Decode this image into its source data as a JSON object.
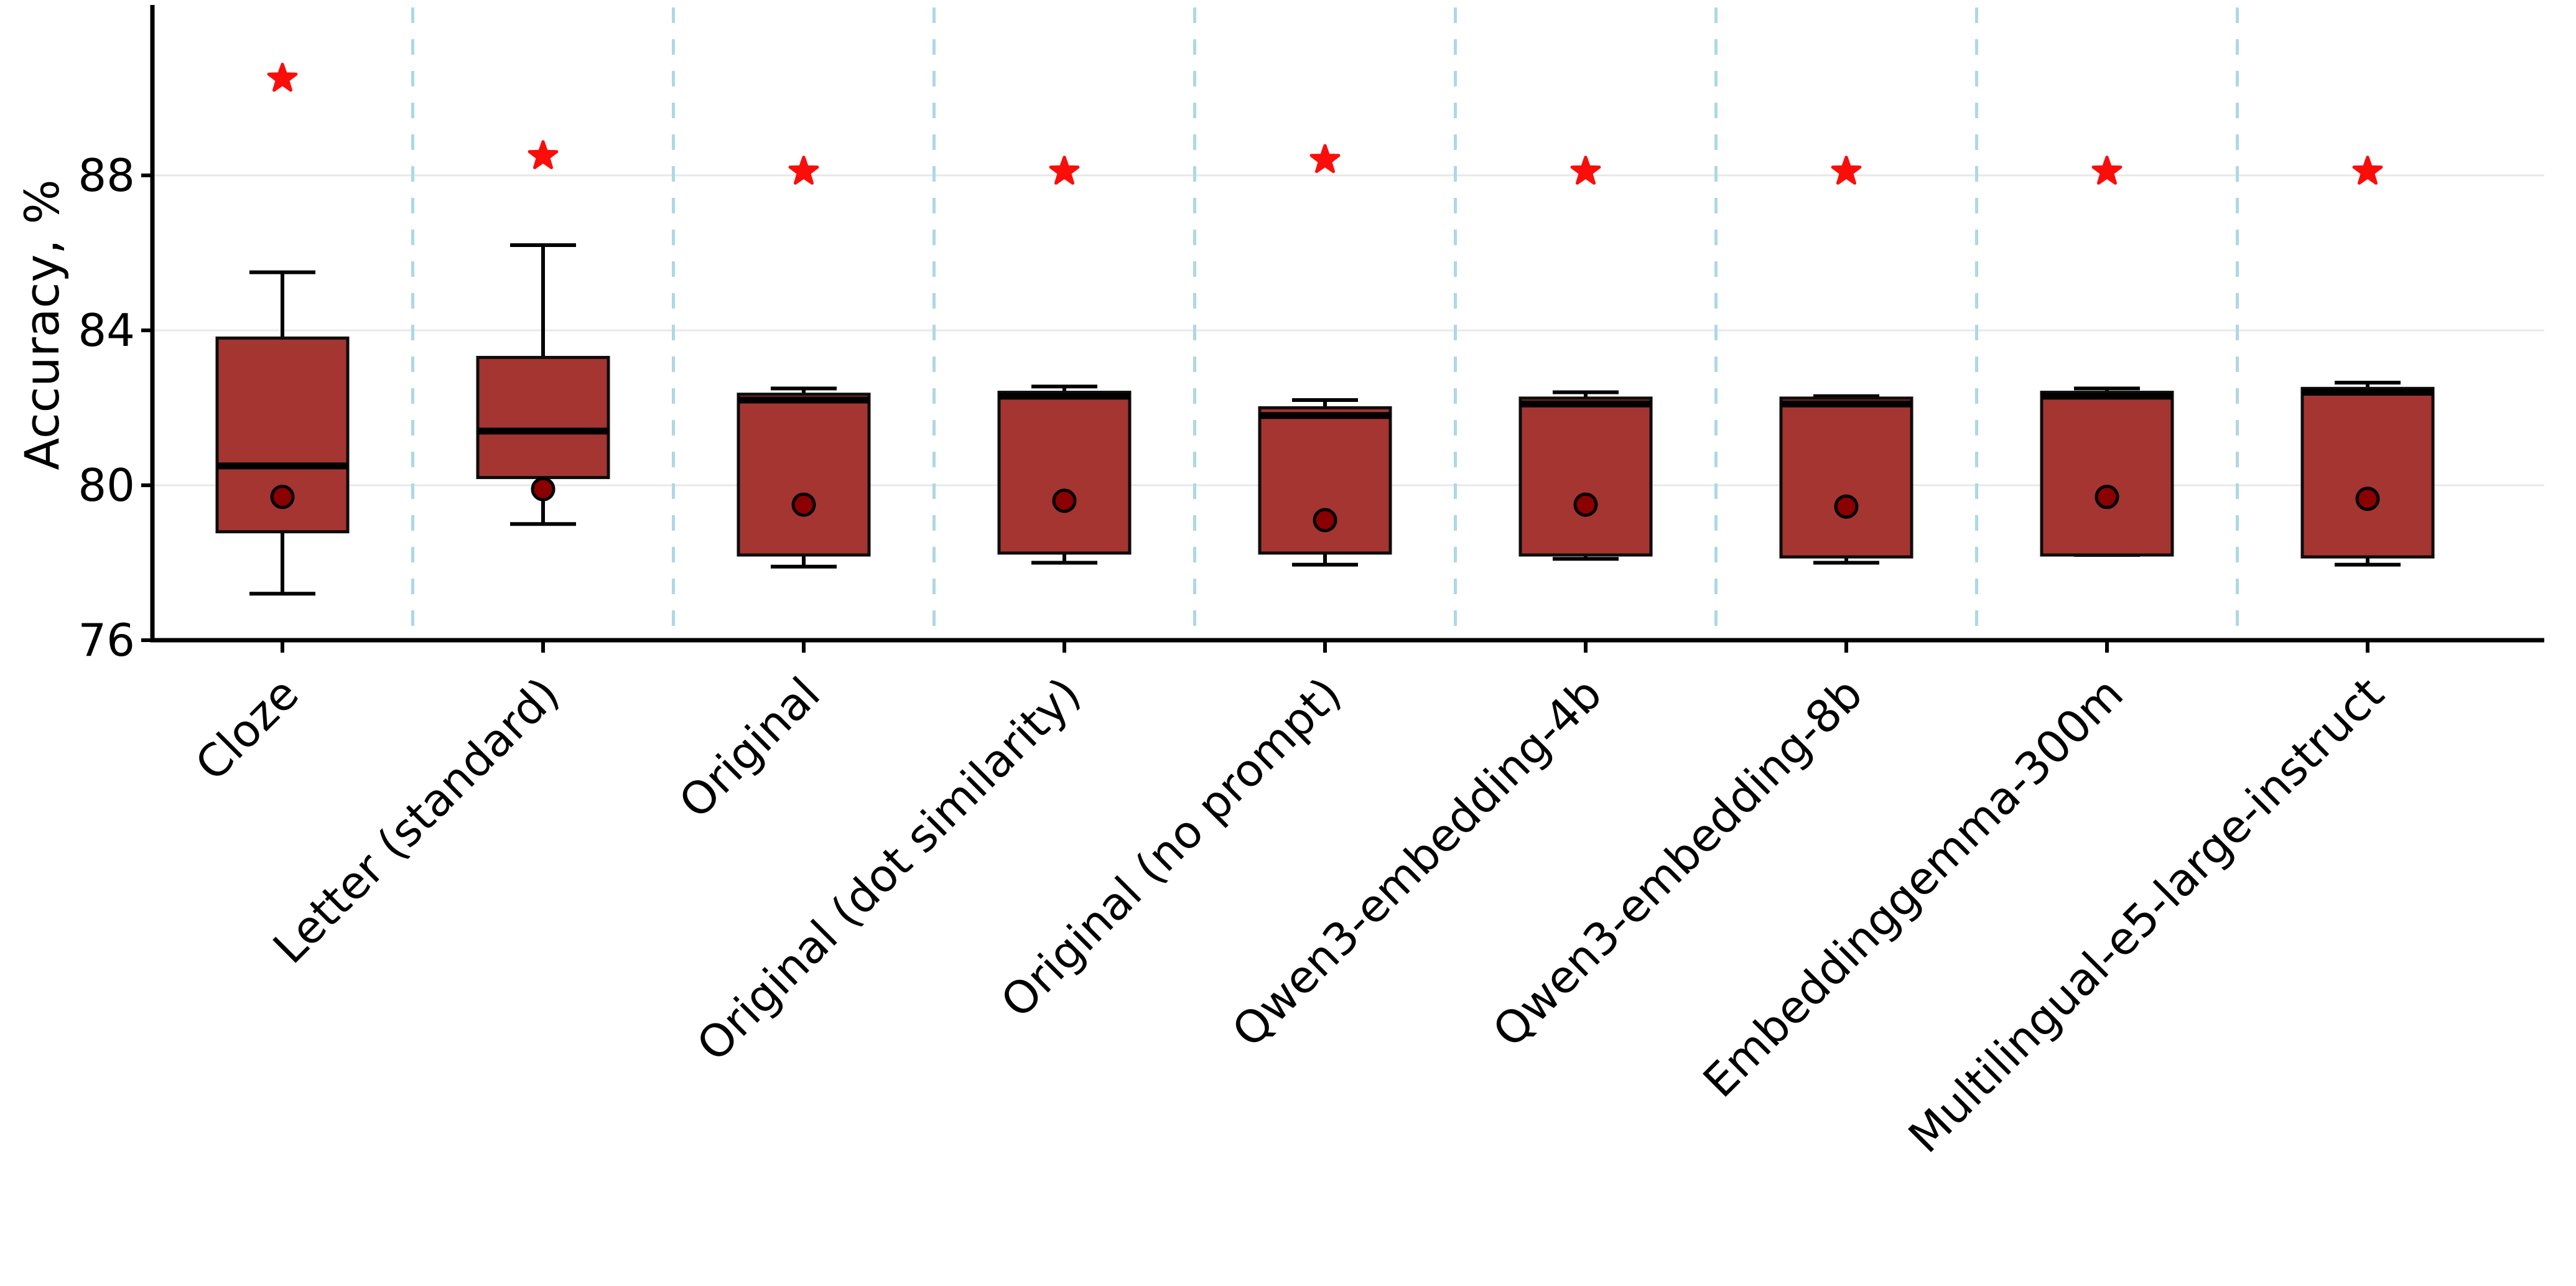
{
  "figure": {
    "ylabel": "Accuracy, %"
  },
  "chart_data": {
    "type": "boxplot",
    "title": "",
    "xlabel": "",
    "ylabel": "Accuracy, %",
    "ylim": [
      76,
      92.4
    ],
    "yticks": [
      76,
      80,
      84,
      88
    ],
    "gridline_values": [
      80,
      84,
      88
    ],
    "grid": "horizontal light-gray solid lines; lightblue dashed vertical separators between categories",
    "legend_position": "none",
    "categories": [
      "Cloze",
      "Letter (standard)",
      "Original",
      "Original (dot similarity)",
      "Original (no prompt)",
      "Qwen3-embedding-4b",
      "Qwen3-embedding-8b",
      "Embeddinggemma-300m",
      "Multilingual-e5-large-instruct"
    ],
    "series": [
      {
        "name": "Cloze",
        "whisker_low": 77.2,
        "q1": 78.8,
        "median": 80.5,
        "q3": 83.8,
        "whisker_high": 85.5,
        "mean": 79.7,
        "star_max": 90.5
      },
      {
        "name": "Letter (standard)",
        "whisker_low": 79.0,
        "q1": 80.2,
        "median": 81.4,
        "q3": 83.3,
        "whisker_high": 86.2,
        "mean": 79.9,
        "star_max": 88.5
      },
      {
        "name": "Original",
        "whisker_low": 77.9,
        "q1": 78.2,
        "median": 82.2,
        "q3": 82.35,
        "whisker_high": 82.5,
        "mean": 79.5,
        "star_max": 88.1
      },
      {
        "name": "Original (dot similarity)",
        "whisker_low": 78.0,
        "q1": 78.25,
        "median": 82.3,
        "q3": 82.4,
        "whisker_high": 82.55,
        "mean": 79.6,
        "star_max": 88.1
      },
      {
        "name": "Original (no prompt)",
        "whisker_low": 77.95,
        "q1": 78.25,
        "median": 81.8,
        "q3": 82.0,
        "whisker_high": 82.2,
        "mean": 79.1,
        "star_max": 88.4
      },
      {
        "name": "Qwen3-embedding-4b",
        "whisker_low": 78.1,
        "q1": 78.2,
        "median": 82.1,
        "q3": 82.25,
        "whisker_high": 82.4,
        "mean": 79.5,
        "star_max": 88.1
      },
      {
        "name": "Qwen3-embedding-8b",
        "whisker_low": 78.0,
        "q1": 78.15,
        "median": 82.1,
        "q3": 82.25,
        "whisker_high": 82.3,
        "mean": 79.45,
        "star_max": 88.1
      },
      {
        "name": "Embeddinggemma-300m",
        "whisker_low": 78.2,
        "q1": 78.2,
        "median": 82.3,
        "q3": 82.4,
        "whisker_high": 82.5,
        "mean": 79.7,
        "star_max": 88.1
      },
      {
        "name": "Multilingual-e5-large-instruct",
        "whisker_low": 77.95,
        "q1": 78.15,
        "median": 82.4,
        "q3": 82.5,
        "whisker_high": 82.65,
        "mean": 79.65,
        "star_max": 88.1
      }
    ],
    "markers": {
      "star": "red star above each box marking best value",
      "dot": "dark-red filled circle marking mean value"
    },
    "colors": {
      "box_fill": "#A53531",
      "box_edge": "#0d0d0d",
      "median_line": "#000000",
      "whisker": "#000000",
      "mean_dot_fill": "#8B0000",
      "mean_dot_edge": "#000000",
      "star": "#FB0D0A",
      "gridline": "#E8E8E8",
      "separator_dashed": "#ADD8E6",
      "axis": "#000000",
      "text": "#000000",
      "background": "#FFFFFF"
    }
  }
}
